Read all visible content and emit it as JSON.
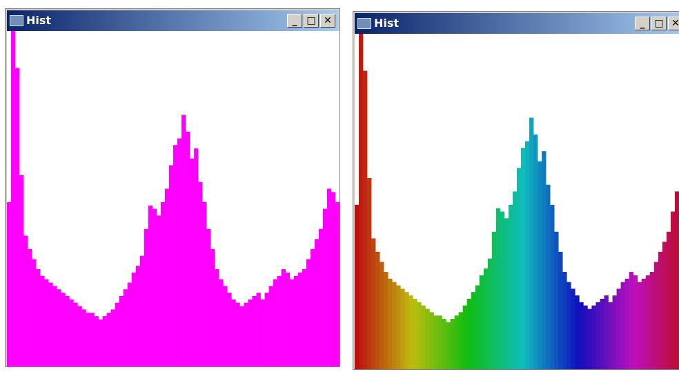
{
  "windows": [
    {
      "title": "Hist",
      "histogram": {
        "type": "bar",
        "color": "#ff00ff",
        "ylim": [
          0,
          100
        ],
        "values": [
          49,
          100,
          89,
          57,
          39,
          35,
          32,
          29,
          27,
          26,
          25,
          24,
          23,
          22,
          21,
          20,
          19,
          18,
          17,
          16,
          16,
          15,
          14,
          15,
          16,
          17,
          19,
          21,
          23,
          25,
          28,
          30,
          33,
          41,
          48,
          47,
          45,
          49,
          53,
          60,
          66,
          68,
          75,
          70,
          62,
          65,
          55,
          49,
          41,
          35,
          29,
          26,
          24,
          22,
          20,
          19,
          18,
          19,
          20,
          21,
          22,
          20,
          22,
          24,
          26,
          27,
          29,
          28,
          26,
          27,
          28,
          29,
          32,
          35,
          38,
          41,
          47,
          53,
          52,
          49
        ]
      }
    },
    {
      "title": "Hist",
      "histogram": {
        "type": "bar",
        "color": "hue",
        "ylim": [
          0,
          100
        ],
        "values": [
          49,
          100,
          89,
          57,
          39,
          35,
          32,
          29,
          27,
          26,
          25,
          24,
          23,
          22,
          21,
          20,
          19,
          18,
          17,
          16,
          16,
          15,
          14,
          15,
          16,
          17,
          19,
          21,
          23,
          25,
          28,
          30,
          33,
          41,
          48,
          47,
          45,
          49,
          53,
          60,
          66,
          68,
          75,
          70,
          62,
          65,
          55,
          49,
          41,
          35,
          29,
          26,
          24,
          22,
          20,
          19,
          18,
          19,
          20,
          21,
          22,
          20,
          22,
          24,
          26,
          27,
          29,
          28,
          26,
          27,
          28,
          29,
          32,
          35,
          38,
          41,
          47,
          53,
          52,
          49
        ]
      }
    }
  ]
}
